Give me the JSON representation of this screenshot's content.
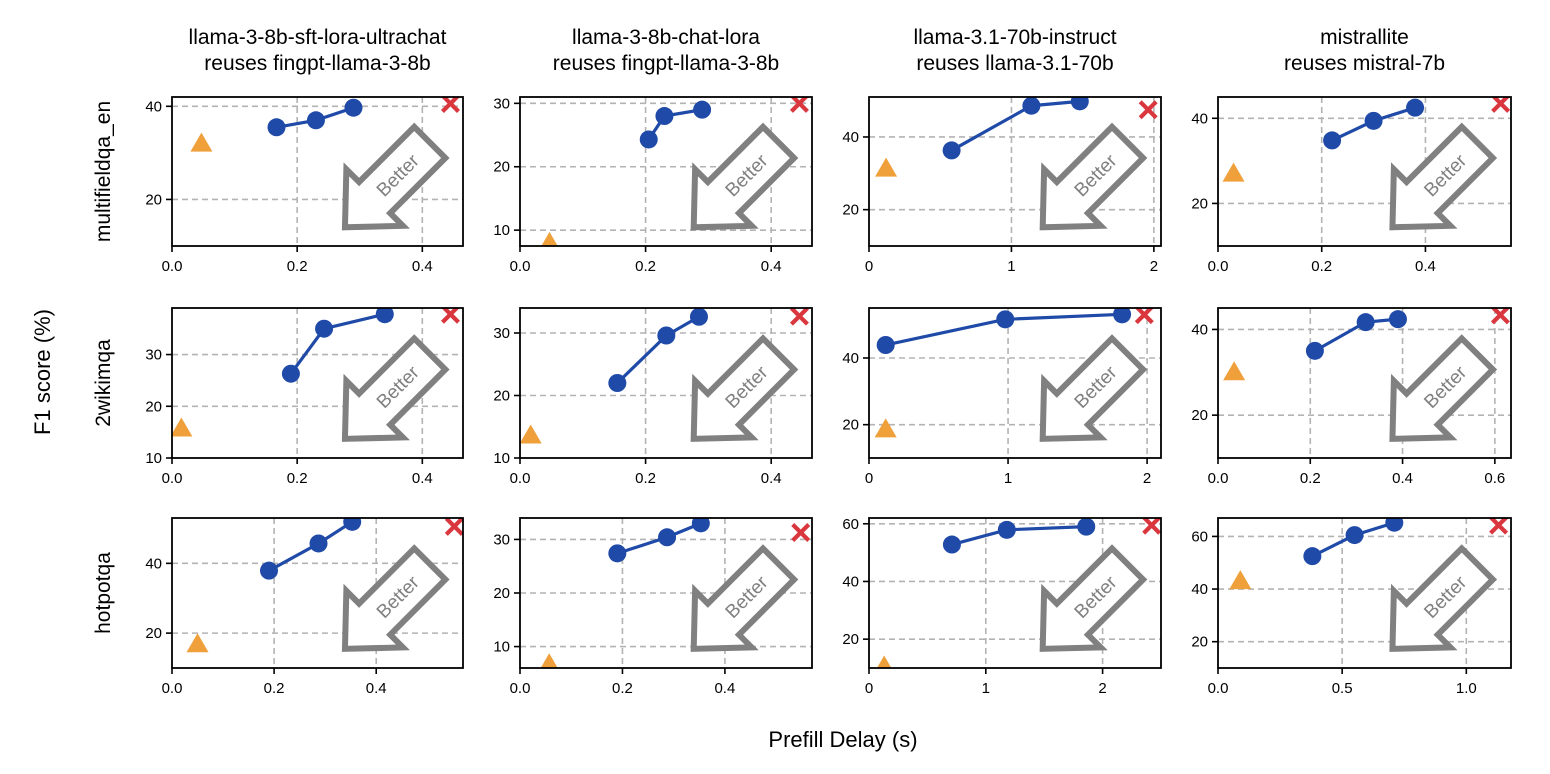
{
  "figure": {
    "xlabel": "Prefill Delay (s)",
    "ylabel": "F1 score (%)",
    "annotation_text": "Better"
  },
  "colors": {
    "line": "#1f4aa8",
    "triangle": "#f0a03a",
    "cross": "#d9363e",
    "grid": "#b3b3b3",
    "arrow": "#808080"
  },
  "chart_data": {
    "type": "scatter",
    "columns": [
      "llama-3-8b-sft-lora-ultrachat\nreuses fingpt-llama-3-8b",
      "llama-3-8b-chat-lora\nreuses fingpt-llama-3-8b",
      "llama-3.1-70b-instruct\nreuses llama-3.1-70b",
      "mistrallite\nreuses mistral-7b"
    ],
    "rows": [
      "multifieldqa_en",
      "2wikimqa",
      "hotpotqa"
    ],
    "panels": [
      {
        "row": 0,
        "col": 0,
        "xlim": [
          0,
          0.465
        ],
        "ylim": [
          10,
          42
        ],
        "xticks": [
          0.0,
          0.2,
          0.4
        ],
        "xtick_labels": [
          "0.0",
          "0.2",
          "0.4"
        ],
        "yticks": [
          20,
          40
        ],
        "ytick_labels": [
          "20",
          "40"
        ],
        "line": {
          "x": [
            0.167,
            0.23,
            0.29
          ],
          "y": [
            35.5,
            37.0,
            39.7
          ]
        },
        "triangle": {
          "x": 0.047,
          "y": 32.0
        },
        "cross": {
          "x": 0.445,
          "y": 40.6
        }
      },
      {
        "row": 0,
        "col": 1,
        "xlim": [
          0,
          0.465
        ],
        "ylim": [
          7.5,
          31
        ],
        "xticks": [
          0.0,
          0.2,
          0.4
        ],
        "xtick_labels": [
          "0.0",
          "0.2",
          "0.4"
        ],
        "yticks": [
          10,
          20,
          30
        ],
        "ytick_labels": [
          "10",
          "20",
          "30"
        ],
        "line": {
          "x": [
            0.205,
            0.23,
            0.29
          ],
          "y": [
            24.3,
            28.0,
            29.0
          ]
        },
        "triangle": {
          "x": 0.047,
          "y": 8.0
        },
        "cross": {
          "x": 0.445,
          "y": 30.0
        }
      },
      {
        "row": 0,
        "col": 2,
        "xlim": [
          0,
          2.05
        ],
        "ylim": [
          10,
          51
        ],
        "xticks": [
          0,
          1,
          2
        ],
        "xtick_labels": [
          "0",
          "1",
          "2"
        ],
        "yticks": [
          20,
          40
        ],
        "ytick_labels": [
          "20",
          "40"
        ],
        "line": {
          "x": [
            0.58,
            1.14,
            1.48
          ],
          "y": [
            36.3,
            48.6,
            49.8
          ]
        },
        "triangle": {
          "x": 0.12,
          "y": 31.3
        },
        "cross": {
          "x": 1.96,
          "y": 47.5
        }
      },
      {
        "row": 0,
        "col": 3,
        "xlim": [
          0,
          0.565
        ],
        "ylim": [
          10,
          45
        ],
        "xticks": [
          0.0,
          0.2,
          0.4
        ],
        "xtick_labels": [
          "0.0",
          "0.2",
          "0.4"
        ],
        "yticks": [
          20,
          40
        ],
        "ytick_labels": [
          "20",
          "40"
        ],
        "line": {
          "x": [
            0.22,
            0.3,
            0.38
          ],
          "y": [
            34.8,
            39.4,
            42.5
          ]
        },
        "triangle": {
          "x": 0.03,
          "y": 27.0
        },
        "cross": {
          "x": 0.545,
          "y": 43.5
        }
      },
      {
        "row": 1,
        "col": 0,
        "xlim": [
          0,
          0.465
        ],
        "ylim": [
          10,
          39
        ],
        "xticks": [
          0.0,
          0.2,
          0.4
        ],
        "xtick_labels": [
          "0.0",
          "0.2",
          "0.4"
        ],
        "yticks": [
          10,
          20,
          30
        ],
        "ytick_labels": [
          "10",
          "20",
          "30"
        ],
        "line": {
          "x": [
            0.19,
            0.243,
            0.34
          ],
          "y": [
            26.3,
            35.0,
            37.8
          ]
        },
        "triangle": {
          "x": 0.015,
          "y": 15.7
        },
        "cross": {
          "x": 0.445,
          "y": 37.8
        }
      },
      {
        "row": 1,
        "col": 1,
        "xlim": [
          0,
          0.465
        ],
        "ylim": [
          10,
          34
        ],
        "xticks": [
          0.0,
          0.2,
          0.4
        ],
        "xtick_labels": [
          "0.0",
          "0.2",
          "0.4"
        ],
        "yticks": [
          10,
          20,
          30
        ],
        "ytick_labels": [
          "10",
          "20",
          "30"
        ],
        "line": {
          "x": [
            0.155,
            0.233,
            0.285
          ],
          "y": [
            22.0,
            29.6,
            32.6
          ]
        },
        "triangle": {
          "x": 0.017,
          "y": 13.6
        },
        "cross": {
          "x": 0.445,
          "y": 32.7
        }
      },
      {
        "row": 1,
        "col": 2,
        "xlim": [
          0,
          2.1
        ],
        "ylim": [
          10,
          55
        ],
        "xticks": [
          0,
          1,
          2
        ],
        "xtick_labels": [
          "0",
          "1",
          "2"
        ],
        "yticks": [
          20,
          40
        ],
        "ytick_labels": [
          "20",
          "40"
        ],
        "line": {
          "x": [
            0.12,
            0.98,
            1.82
          ],
          "y": [
            43.9,
            51.6,
            53.1
          ]
        },
        "triangle": {
          "x": 0.12,
          "y": 18.6
        },
        "cross": {
          "x": 1.98,
          "y": 53.0
        }
      },
      {
        "row": 1,
        "col": 3,
        "xlim": [
          0,
          0.635
        ],
        "ylim": [
          10,
          45
        ],
        "xticks": [
          0.0,
          0.2,
          0.4,
          0.6
        ],
        "xtick_labels": [
          "0.0",
          "0.2",
          "0.4",
          "0.6"
        ],
        "yticks": [
          20,
          40
        ],
        "ytick_labels": [
          "20",
          "40"
        ],
        "line": {
          "x": [
            0.21,
            0.32,
            0.39
          ],
          "y": [
            35.0,
            41.7,
            42.4
          ]
        },
        "triangle": {
          "x": 0.035,
          "y": 30.0
        },
        "cross": {
          "x": 0.612,
          "y": 43.4
        }
      },
      {
        "row": 2,
        "col": 0,
        "xlim": [
          0,
          0.57
        ],
        "ylim": [
          10,
          53
        ],
        "xticks": [
          0.0,
          0.2,
          0.4
        ],
        "xtick_labels": [
          "0.0",
          "0.2",
          "0.4"
        ],
        "yticks": [
          20,
          40
        ],
        "ytick_labels": [
          "20",
          "40"
        ],
        "line": {
          "x": [
            0.19,
            0.287,
            0.353
          ],
          "y": [
            37.9,
            45.7,
            51.9
          ]
        },
        "triangle": {
          "x": 0.05,
          "y": 16.8
        },
        "cross": {
          "x": 0.553,
          "y": 50.6
        }
      },
      {
        "row": 2,
        "col": 1,
        "xlim": [
          0,
          0.57
        ],
        "ylim": [
          6,
          34
        ],
        "xticks": [
          0.0,
          0.2,
          0.4
        ],
        "xtick_labels": [
          "0.0",
          "0.2",
          "0.4"
        ],
        "yticks": [
          10,
          20,
          30
        ],
        "ytick_labels": [
          "10",
          "20",
          "30"
        ],
        "line": {
          "x": [
            0.19,
            0.287,
            0.353
          ],
          "y": [
            27.4,
            30.4,
            33.0
          ]
        },
        "triangle": {
          "x": 0.057,
          "y": 6.7
        },
        "cross": {
          "x": 0.548,
          "y": 31.3
        }
      },
      {
        "row": 2,
        "col": 2,
        "xlim": [
          0,
          2.5
        ],
        "ylim": [
          10,
          62
        ],
        "xticks": [
          0,
          1,
          2
        ],
        "xtick_labels": [
          "0",
          "1",
          "2"
        ],
        "yticks": [
          20,
          40,
          60
        ],
        "ytick_labels": [
          "20",
          "40",
          "60"
        ],
        "line": {
          "x": [
            0.71,
            1.18,
            1.86
          ],
          "y": [
            52.8,
            57.9,
            59.0
          ]
        },
        "triangle": {
          "x": 0.13,
          "y": 10.5
        },
        "cross": {
          "x": 2.42,
          "y": 59.5
        }
      },
      {
        "row": 2,
        "col": 3,
        "xlim": [
          0,
          1.18
        ],
        "ylim": [
          10,
          67
        ],
        "xticks": [
          0.0,
          0.5,
          1.0
        ],
        "xtick_labels": [
          "0.0",
          "0.5",
          "1.0"
        ],
        "yticks": [
          20,
          40,
          60
        ],
        "ytick_labels": [
          "20",
          "40",
          "60"
        ],
        "line": {
          "x": [
            0.38,
            0.55,
            0.71
          ],
          "y": [
            52.5,
            60.5,
            65.2
          ]
        },
        "triangle": {
          "x": 0.09,
          "y": 43.0
        },
        "cross": {
          "x": 1.13,
          "y": 64.3
        }
      }
    ]
  }
}
